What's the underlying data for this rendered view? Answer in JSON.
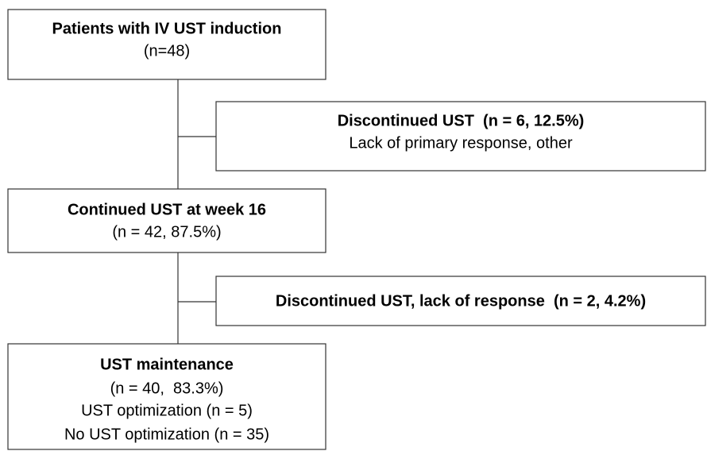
{
  "nodes": [
    {
      "title": "Patients with IV UST induction",
      "lines": [
        "(n=48)"
      ]
    },
    {
      "title": "Discontinued UST  (n = 6, 12.5%)",
      "lines": [
        "Lack of primary response, other"
      ]
    },
    {
      "title": "Continued UST at week 16",
      "lines": [
        "(n = 42, 87.5%)"
      ]
    },
    {
      "title": "Discontinued UST, lack of response  (n = 2, 4.2%)",
      "lines": []
    },
    {
      "title": "UST maintenance",
      "lines": [
        "(n = 40,  83.3%)",
        "UST optimization (n = 5)",
        "No UST optimization (n = 35)"
      ]
    }
  ]
}
